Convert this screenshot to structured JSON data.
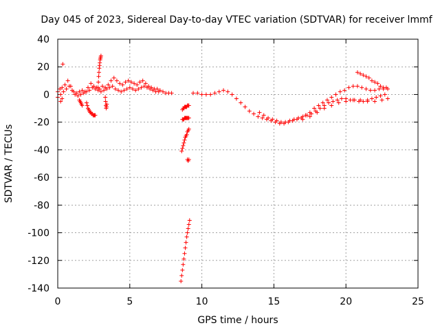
{
  "chart_data": {
    "type": "scatter",
    "title": "Day 045 of 2023, Sidereal Day-to-day VTEC variation (SDTVAR) for receiver lmmf",
    "xlabel": "GPS time / hours",
    "ylabel": "SDTVAR / TECUs",
    "xlim": [
      0,
      25
    ],
    "ylim": [
      -140,
      40
    ],
    "xticks": [
      0,
      5,
      10,
      15,
      20,
      25
    ],
    "yticks": [
      -140,
      -120,
      -100,
      -80,
      -60,
      -40,
      -20,
      0,
      20,
      40
    ],
    "xtick_labels": [
      "0",
      "5",
      "10",
      "15",
      "20",
      "25"
    ],
    "ytick_labels": [
      "-140",
      "-120",
      "-100",
      "-80",
      "-60",
      "-40",
      "-20",
      "0",
      "20",
      "40"
    ],
    "grid": true,
    "marker": "+",
    "color": "#ff0000",
    "series": [
      {
        "name": "SDTVAR",
        "clusters": [
          {
            "x": [
              0.0,
              0.15,
              0.3,
              0.5,
              0.7,
              0.9,
              1.1,
              1.3,
              1.5,
              1.7,
              1.9,
              2.1,
              2.3,
              2.5,
              2.7,
              2.9,
              3.1,
              3.3,
              3.5,
              3.7,
              3.9,
              4.1,
              4.3,
              4.5,
              4.7,
              4.9,
              5.1,
              5.3,
              5.5,
              5.7,
              5.9,
              6.1,
              6.3,
              6.5,
              6.7,
              6.9,
              7.1,
              7.3,
              7.5,
              7.7,
              7.9
            ],
            "y": [
              2,
              4,
              5,
              7,
              10,
              6,
              2,
              1,
              2,
              3,
              2,
              5,
              8,
              6,
              5,
              4,
              6,
              5,
              7,
              10,
              12,
              10,
              8,
              7,
              9,
              10,
              9,
              8,
              7,
              9,
              10,
              8,
              6,
              5,
              4,
              4,
              3,
              2,
              1,
              1,
              1
            ]
          },
          {
            "x": [
              0.0,
              0.2,
              0.4,
              0.6,
              0.8,
              1.0,
              1.2,
              1.4,
              1.6,
              1.8,
              2.0,
              2.2,
              2.4,
              2.6,
              2.8,
              3.0,
              3.2,
              3.4,
              3.6,
              3.8,
              4.0,
              4.2,
              4.4,
              4.6,
              4.8,
              5.0,
              5.2,
              5.4,
              5.6,
              5.8,
              6.0,
              6.2,
              6.4,
              6.6,
              6.8,
              7.0
            ],
            "y": [
              -2,
              0,
              2,
              4,
              6,
              3,
              0,
              -1,
              0,
              1,
              2,
              3,
              5,
              4,
              3,
              2,
              3,
              4,
              5,
              6,
              4,
              3,
              2,
              3,
              4,
              5,
              4,
              3,
              4,
              5,
              6,
              5,
              4,
              3,
              2,
              2
            ]
          },
          {
            "x": [
              0.2,
              0.3,
              0.35
            ],
            "y": [
              -5,
              -3,
              22
            ]
          },
          {
            "x": [
              1.5,
              1.55,
              1.6,
              1.65,
              1.7
            ],
            "y": [
              -4,
              -5,
              -6,
              -7,
              -8
            ]
          },
          {
            "x": [
              2.0,
              2.05,
              2.1,
              2.15,
              2.2,
              2.25,
              2.3,
              2.35,
              2.4,
              2.45,
              2.5,
              2.55,
              2.6
            ],
            "y": [
              -6,
              -8,
              -10,
              -11,
              -12,
              -13,
              -13,
              -14,
              -14,
              -15,
              -15,
              -15,
              -15
            ]
          },
          {
            "x": [
              2.8,
              2.82,
              2.84,
              2.86,
              2.88,
              2.9,
              2.92,
              2.94,
              2.96,
              2.98,
              3.0
            ],
            "y": [
              5,
              9,
              13,
              16,
              19,
              21,
              23,
              25,
              26,
              27,
              28
            ]
          },
          {
            "x": [
              3.3,
              3.32,
              3.34,
              3.36,
              3.38,
              3.4
            ],
            "y": [
              -2,
              -5,
              -8,
              -10,
              -9,
              -7
            ]
          },
          {
            "x": [
              8.6,
              8.65,
              8.7,
              8.75,
              8.8,
              8.85,
              8.9,
              8.95,
              9.0,
              9.05,
              9.1
            ],
            "y": [
              -41,
              -39,
              -37,
              -35,
              -33,
              -31,
              -30,
              -29,
              -27,
              -26,
              -25
            ]
          },
          {
            "x": [
              8.65,
              8.7,
              8.75,
              8.8,
              8.85,
              8.9,
              8.95,
              9.0,
              9.05,
              9.1
            ],
            "y": [
              -11,
              -10,
              -10,
              -9,
              -9,
              -9,
              -9,
              -8,
              -8,
              -8
            ]
          },
          {
            "x": [
              8.65,
              8.7,
              8.75,
              8.8,
              8.85,
              8.9,
              8.95,
              9.0,
              9.05,
              9.1
            ],
            "y": [
              -18,
              -18,
              -18,
              -17,
              -17,
              -17,
              -17,
              -17,
              -17,
              -17
            ]
          },
          {
            "x": [
              9.0,
              9.05,
              9.1
            ],
            "y": [
              -47,
              -48,
              -47
            ]
          },
          {
            "x": [
              8.55,
              8.6,
              8.65,
              8.7,
              8.75,
              8.8,
              8.85,
              8.9,
              8.95,
              9.0,
              9.05,
              9.1,
              9.15
            ],
            "y": [
              -135,
              -131,
              -127,
              -123,
              -119,
              -115,
              -111,
              -107,
              -103,
              -100,
              -97,
              -94,
              -91
            ]
          },
          {
            "x": [
              9.4,
              9.7,
              10.0,
              10.3,
              10.6,
              10.9,
              11.2,
              11.5,
              11.8,
              12.1,
              12.4,
              12.7,
              13.0,
              13.3,
              13.6,
              13.9,
              14.2,
              14.5,
              14.8,
              15.1,
              15.4,
              15.7,
              16.0,
              16.3,
              16.6,
              16.9,
              17.2,
              17.5,
              17.8,
              18.1,
              18.4,
              18.7,
              19.0,
              19.3,
              19.6,
              19.9,
              20.2,
              20.5,
              20.8,
              21.1,
              21.4,
              21.7,
              22.0,
              22.3,
              22.6,
              22.9
            ],
            "y": [
              1,
              1,
              0,
              0,
              0,
              1,
              2,
              3,
              2,
              0,
              -3,
              -6,
              -9,
              -12,
              -14,
              -16,
              -17,
              -18,
              -19,
              -20,
              -21,
              -21,
              -20,
              -19,
              -18,
              -17,
              -15,
              -13,
              -10,
              -8,
              -6,
              -4,
              -2,
              0,
              2,
              3,
              5,
              6,
              6,
              5,
              4,
              3,
              3,
              4,
              4,
              4
            ]
          },
          {
            "x": [
              14.0,
              14.3,
              14.6,
              14.9,
              15.2,
              15.5,
              15.8,
              16.1,
              16.4,
              16.7,
              17.0,
              17.3,
              17.6,
              17.9,
              18.2,
              18.5,
              18.8,
              19.1,
              19.4,
              19.7,
              20.0,
              20.3,
              20.6,
              20.9,
              21.2,
              21.5,
              21.8,
              22.1,
              22.4,
              22.7
            ],
            "y": [
              -13,
              -15,
              -17,
              -18,
              -19,
              -20,
              -20,
              -19,
              -18,
              -17,
              -16,
              -15,
              -14,
              -12,
              -10,
              -8,
              -6,
              -5,
              -4,
              -3,
              -3,
              -4,
              -4,
              -5,
              -5,
              -4,
              -3,
              -2,
              -1,
              0
            ]
          },
          {
            "x": [
              20.8,
              21.0,
              21.2,
              21.4,
              21.6,
              21.8,
              22.0,
              22.2,
              22.4,
              22.6,
              22.8
            ],
            "y": [
              16,
              15,
              14,
              13,
              12,
              10,
              9,
              8,
              6,
              5,
              5
            ]
          },
          {
            "x": [
              17.0,
              17.5,
              18.0,
              18.5,
              19.0,
              19.5,
              20.0,
              20.5,
              21.0,
              21.5,
              22.0,
              22.5,
              22.9
            ],
            "y": [
              -18,
              -16,
              -13,
              -10,
              -8,
              -6,
              -5,
              -4,
              -4,
              -5,
              -5,
              -4,
              -3
            ]
          }
        ]
      }
    ]
  }
}
